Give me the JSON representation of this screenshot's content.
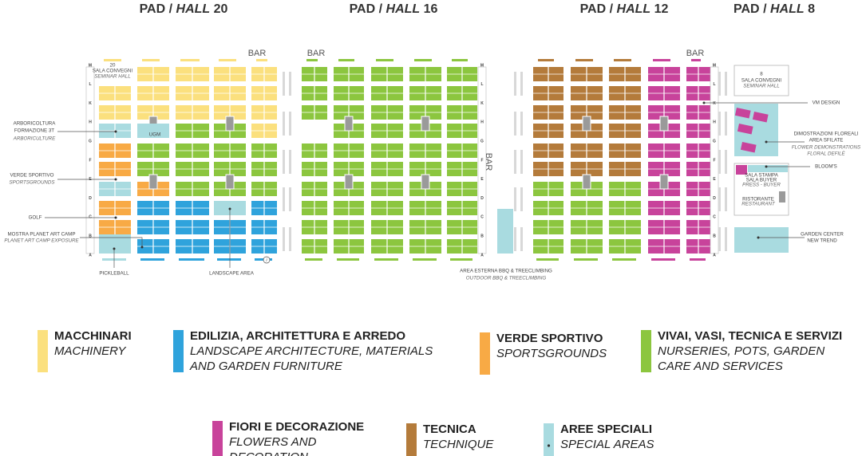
{
  "separator": "/",
  "halls": [
    {
      "pad": "PAD",
      "hall": "HALL",
      "number": "20"
    },
    {
      "pad": "PAD",
      "hall": "HALL",
      "number": "16"
    },
    {
      "pad": "PAD",
      "hall": "HALL",
      "number": "12"
    },
    {
      "pad": "PAD",
      "hall": "HALL",
      "number": "8"
    }
  ],
  "bar_label": "BAR",
  "rows": [
    "M",
    "L",
    "K",
    "H",
    "G",
    "F",
    "E",
    "D",
    "C",
    "B",
    "A"
  ],
  "info_icon": "i",
  "annotations": {
    "hall20_number": "20",
    "hall20_seminar_it": "SALA CONVEGNI",
    "hall20_seminar_en": "SEMINAR HALL",
    "ugm": "UGM",
    "arboriculture_it_1": "ARBORICOLTURA",
    "arboriculture_it_2": "FORMAZIONE 3T",
    "arboriculture_en": "ARBORICULTURE",
    "sportsgrounds_it": "VERDE SPORTIVO",
    "sportsgrounds_en": "SPORTSGROUNDS",
    "golf": "GOLF",
    "planet_art_it": "MOSTRA PLANET ART CAMP",
    "planet_art_en": "PLANET ART CAMP EXPOSURE",
    "pickleball": "PICKLEBALL",
    "landscape_area": "LANDSCAPE AREA",
    "outdoor_it": "AREA ESTERNA BBQ & TREECLIMBING",
    "outdoor_en": "OUTDOOR BBQ & TREECLIMBING",
    "hall8_number": "8",
    "hall8_seminar_it": "SALA CONVEGNI",
    "hall8_seminar_en": "SEMINAR HALL",
    "vm_design": "VM DESIGN",
    "floral_it_1": "DIMOSTRAZIONI FLOREALI",
    "floral_it_2": "AREA SFILATE",
    "floral_en_1": "FLOWER DEMONSTRATIONS",
    "floral_en_2": "FLORAL DEFILÈ",
    "blooms": "BLOOM'S",
    "press_it_1": "SALA STAMPA",
    "press_it_2": "SALA BUYER",
    "press_en": "PRESS - BUYER",
    "restaurant_it": "RISTORANTE",
    "restaurant_en": "RESTAURANT",
    "garden_center_1": "GARDEN CENTER",
    "garden_center_2": "NEW TREND"
  },
  "legend": [
    {
      "name": "MACCHINARI",
      "translation": [
        "MACHINERY"
      ],
      "color": "#fbe07e"
    },
    {
      "name": "EDILIZIA, ARCHITETTURA E ARREDO",
      "translation": [
        "LANDSCAPE ARCHITECTURE, MATERIALS",
        "AND GARDEN FURNITURE"
      ],
      "color": "#2fa3dc"
    },
    {
      "name": "VERDE SPORTIVO",
      "translation": [
        "SPORTSGROUNDS"
      ],
      "color": "#f8aa45"
    },
    {
      "name": "VIVAI, VASI, TECNICA E SERVIZI",
      "translation": [
        "NURSERIES, POTS, GARDEN",
        "CARE AND SERVICES"
      ],
      "color": "#8cc63f"
    },
    {
      "name": "FIORI E DECORAZIONE",
      "translation": [
        "FLOWERS AND",
        "DECORATION"
      ],
      "color": "#c8439b"
    },
    {
      "name": "TECNICA",
      "translation": [
        "TECHNIQUE"
      ],
      "color": "#b47b3b"
    },
    {
      "name": "AREE SPECIALI",
      "translation": [
        "SPECIAL AREAS"
      ],
      "color": "#a9dbe0"
    }
  ]
}
